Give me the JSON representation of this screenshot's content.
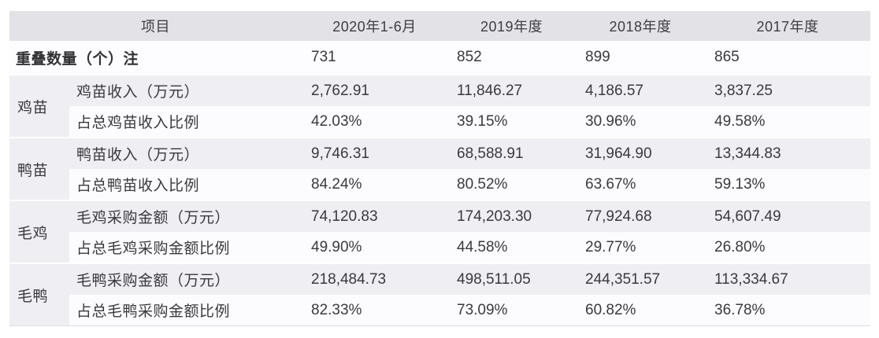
{
  "table": {
    "header": {
      "item_label": "项目",
      "col1": "2020年1-6月",
      "col2": "2019年度",
      "col3": "2018年度",
      "col4": "2017年度"
    },
    "overlap_row": {
      "label": "重叠数量（个）注",
      "v1": "731",
      "v2": "852",
      "v3": "899",
      "v4": "865"
    },
    "groups": [
      {
        "name": "鸡苗",
        "rows": [
          {
            "label": "鸡苗收入（万元）",
            "v1": "2,762.91",
            "v2": "11,846.27",
            "v3": "4,186.57",
            "v4": "3,837.25"
          },
          {
            "label": "占总鸡苗收入比例",
            "v1": "42.03%",
            "v2": "39.15%",
            "v3": "30.96%",
            "v4": "49.58%"
          }
        ]
      },
      {
        "name": "鸭苗",
        "rows": [
          {
            "label": "鸭苗收入（万元）",
            "v1": "9,746.31",
            "v2": "68,588.91",
            "v3": "31,964.90",
            "v4": "13,344.83"
          },
          {
            "label": "占总鸭苗收入比例",
            "v1": "84.24%",
            "v2": "80.52%",
            "v3": "63.67%",
            "v4": "59.13%"
          }
        ]
      },
      {
        "name": "毛鸡",
        "rows": [
          {
            "label": "毛鸡采购金额（万元）",
            "v1": "74,120.83",
            "v2": "174,203.30",
            "v3": "77,924.68",
            "v4": "54,607.49"
          },
          {
            "label": "占总毛鸡采购金额比例",
            "v1": "49.90%",
            "v2": "44.58%",
            "v3": "29.77%",
            "v4": "26.80%"
          }
        ]
      },
      {
        "name": "毛鸭",
        "rows": [
          {
            "label": "毛鸭采购金额（万元）",
            "v1": "218,484.73",
            "v2": "498,511.05",
            "v3": "244,351.57",
            "v4": "113,334.67"
          },
          {
            "label": "占总毛鸭采购金额比例",
            "v1": "82.33%",
            "v2": "73.09%",
            "v3": "60.82%",
            "v4": "36.78%"
          }
        ]
      }
    ],
    "colors": {
      "header_bg": "#e3e2e6",
      "group_row_bg": "#efeef2",
      "white_row_bg": "#fcfbfd",
      "text": "#3a393d",
      "bottom_border": "#dcdbe0"
    }
  }
}
